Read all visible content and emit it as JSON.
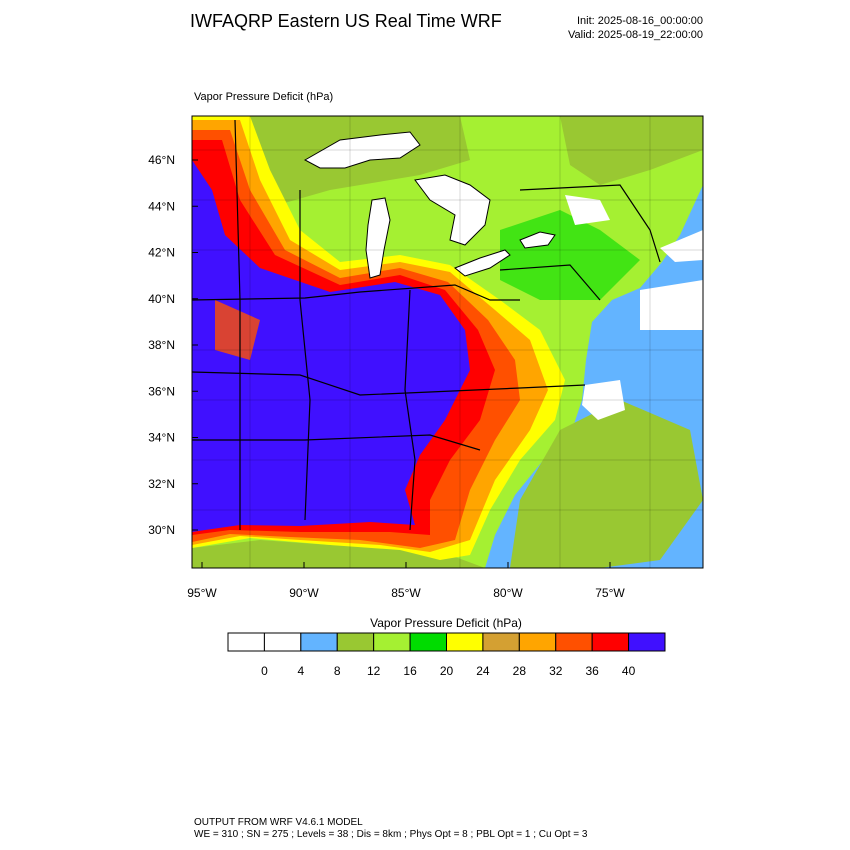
{
  "header": {
    "title": "IWFAQRP Eastern US Real Time WRF",
    "init": "Init: 2025-08-16_00:00:00",
    "valid": "Valid: 2025-08-19_22:00:00"
  },
  "map": {
    "label": "Vapor Pressure Deficit   (hPa)",
    "lat_labels": [
      "46°N",
      "44°N",
      "42°N",
      "40°N",
      "38°N",
      "36°N",
      "34°N",
      "32°N",
      "30°N"
    ],
    "lon_labels": [
      "95°W",
      "90°W",
      "85°W",
      "80°W",
      "75°W"
    ]
  },
  "colorbar": {
    "title": "Vapor Pressure Deficit  (hPa)",
    "levels": [
      0,
      4,
      8,
      12,
      16,
      20,
      24,
      28,
      32,
      36,
      40
    ],
    "colors": [
      "#ffffff",
      "#ffffff",
      "#63b4ff",
      "#99c832",
      "#a5f032",
      "#00dc00",
      "#ffff00",
      "#d4a032",
      "#ffa500",
      "#ff5000",
      "#ff0000",
      "#4010ff"
    ]
  },
  "footer": {
    "line1": "OUTPUT FROM WRF V4.6.1 MODEL",
    "line2": "WE = 310 ; SN = 275 ; Levels = 38 ; Dis = 8km ; Phys Opt = 8 ; PBL Opt = 1 ; Cu Opt = 3"
  }
}
